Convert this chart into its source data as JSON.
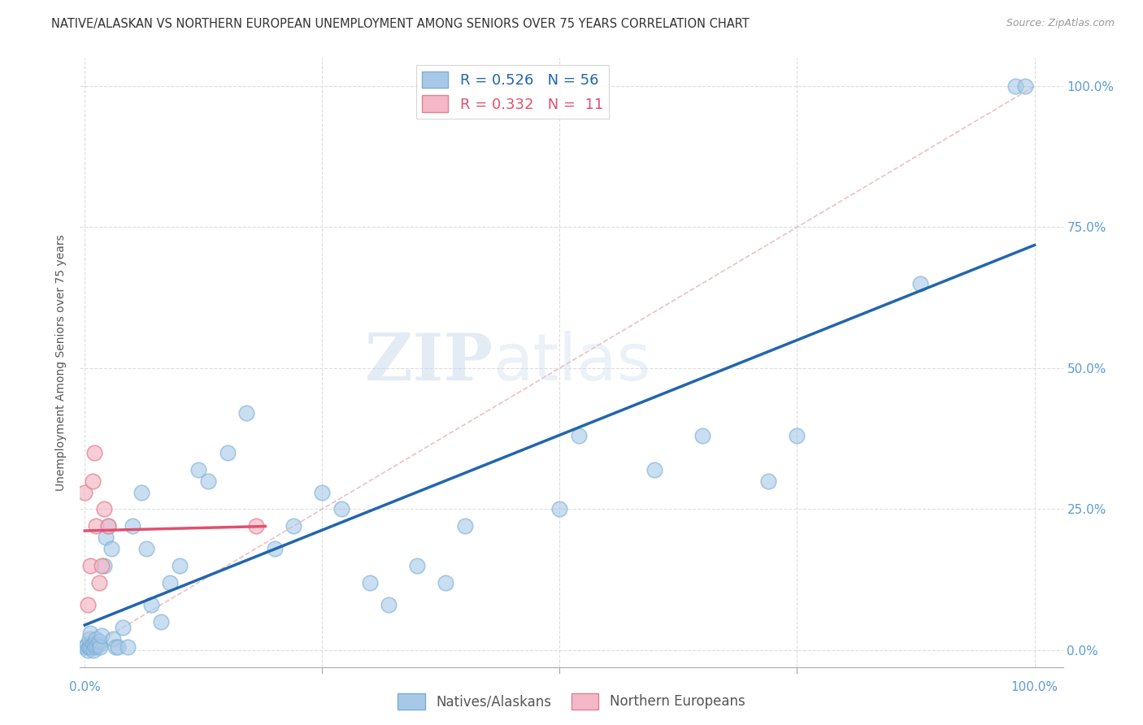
{
  "title": "NATIVE/ALASKAN VS NORTHERN EUROPEAN UNEMPLOYMENT AMONG SENIORS OVER 75 YEARS CORRELATION CHART",
  "source": "Source: ZipAtlas.com",
  "ylabel": "Unemployment Among Seniors over 75 years",
  "watermark_zip": "ZIP",
  "watermark_atlas": "atlas",
  "blue_R": "0.526",
  "blue_N": "56",
  "pink_R": "0.332",
  "pink_N": "11",
  "blue_color": "#a8c8e8",
  "blue_edge_color": "#7aafd4",
  "pink_color": "#f4b8c8",
  "pink_edge_color": "#e08090",
  "blue_line_color": "#2166ac",
  "pink_line_color": "#e05070",
  "diagonal_color": "#e8b0b8",
  "tick_color": "#5b9bd5",
  "grid_color": "#dddddd",
  "bg_color": "#ffffff",
  "blue_x": [
    0.0,
    0.002,
    0.003,
    0.004,
    0.005,
    0.005,
    0.006,
    0.007,
    0.008,
    0.009,
    0.01,
    0.011,
    0.012,
    0.013,
    0.015,
    0.015,
    0.016,
    0.018,
    0.02,
    0.022,
    0.025,
    0.028,
    0.03,
    0.032,
    0.035,
    0.04,
    0.045,
    0.05,
    0.06,
    0.065,
    0.07,
    0.08,
    0.09,
    0.1,
    0.12,
    0.13,
    0.15,
    0.17,
    0.2,
    0.22,
    0.25,
    0.27,
    0.3,
    0.32,
    0.35,
    0.38,
    0.4,
    0.5,
    0.52,
    0.6,
    0.65,
    0.72,
    0.75,
    0.88,
    0.98,
    0.99
  ],
  "blue_y": [
    0.005,
    0.01,
    0.0,
    0.005,
    0.005,
    0.02,
    0.03,
    0.005,
    0.01,
    0.0,
    0.01,
    0.005,
    0.02,
    0.008,
    0.01,
    0.015,
    0.005,
    0.025,
    0.15,
    0.2,
    0.22,
    0.18,
    0.02,
    0.005,
    0.005,
    0.04,
    0.005,
    0.22,
    0.28,
    0.18,
    0.08,
    0.05,
    0.12,
    0.15,
    0.32,
    0.3,
    0.35,
    0.42,
    0.18,
    0.22,
    0.28,
    0.25,
    0.12,
    0.08,
    0.15,
    0.12,
    0.22,
    0.25,
    0.38,
    0.32,
    0.38,
    0.3,
    0.38,
    0.65,
    1.0,
    1.0
  ],
  "pink_x": [
    0.0,
    0.003,
    0.006,
    0.008,
    0.01,
    0.012,
    0.015,
    0.018,
    0.02,
    0.025,
    0.18
  ],
  "pink_y": [
    0.28,
    0.08,
    0.15,
    0.3,
    0.35,
    0.22,
    0.12,
    0.15,
    0.25,
    0.22,
    0.22
  ],
  "xlim_min": -0.005,
  "xlim_max": 1.03,
  "ylim_min": -0.03,
  "ylim_max": 1.05
}
